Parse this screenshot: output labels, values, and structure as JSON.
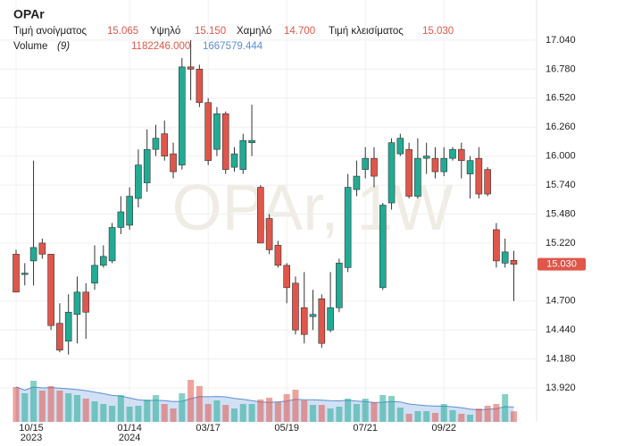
{
  "chart_data": {
    "type": "candlestick",
    "title": "OPAr",
    "watermark": "OPAr, 1W",
    "categories": [
      "10/15",
      null,
      null,
      null,
      null,
      null,
      null,
      null,
      null,
      null,
      null,
      null,
      null,
      "01/14",
      null,
      null,
      null,
      null,
      null,
      null,
      null,
      null,
      "03/17",
      null,
      null,
      null,
      null,
      null,
      null,
      null,
      null,
      "05/19",
      null,
      null,
      null,
      null,
      null,
      null,
      null,
      null,
      "07/21",
      null,
      null,
      null,
      null,
      null,
      null,
      null,
      null,
      "09/22",
      null,
      null,
      null,
      null,
      null,
      null,
      null,
      null
    ],
    "year_labels": [
      {
        "index": 0,
        "label": "2023"
      },
      {
        "index": 13,
        "label": "2024"
      }
    ],
    "open": [
      15.12,
      14.94,
      15.06,
      15.22,
      15.12,
      14.5,
      14.34,
      14.58,
      14.78,
      14.86,
      15.02,
      15.06,
      15.36,
      15.38,
      15.62,
      15.76,
      16.06,
      16.2,
      16.02,
      15.92,
      16.8,
      16.78,
      16.48,
      16.06,
      16.38,
      15.9,
      15.88,
      16.12,
      15.72,
      15.44,
      15.2,
      15.02,
      14.86,
      14.64,
      14.56,
      14.72,
      14.44,
      14.64,
      15.0,
      15.7,
      15.88,
      15.98,
      14.82,
      15.58,
      16.02,
      16.06,
      15.64,
      15.98,
      15.98,
      15.86,
      15.98,
      16.06,
      15.84,
      15.98,
      15.88,
      15.34,
      15.04,
      15.065
    ],
    "high": [
      15.16,
      15.04,
      15.96,
      15.26,
      15.12,
      14.68,
      14.76,
      14.92,
      14.86,
      15.2,
      15.2,
      15.4,
      15.64,
      15.72,
      16.06,
      16.24,
      16.28,
      16.32,
      16.12,
      16.88,
      17.04,
      16.82,
      16.52,
      16.44,
      16.4,
      16.08,
      16.2,
      16.46,
      15.74,
      15.48,
      15.24,
      15.04,
      14.92,
      14.96,
      14.8,
      14.76,
      14.96,
      15.08,
      15.84,
      15.96,
      16.08,
      16.08,
      15.58,
      16.16,
      16.2,
      16.12,
      16.16,
      16.12,
      16.08,
      16.08,
      16.08,
      16.12,
      16.0,
      16.08,
      15.9,
      15.4,
      15.26,
      15.15
    ],
    "low": [
      14.78,
      14.84,
      14.84,
      15.08,
      14.44,
      14.24,
      14.22,
      14.32,
      14.36,
      14.8,
      15.0,
      15.04,
      15.3,
      15.34,
      15.54,
      15.68,
      16.0,
      15.96,
      15.8,
      15.88,
      16.5,
      16.44,
      15.92,
      16.0,
      15.84,
      15.86,
      15.84,
      16.0,
      15.22,
      15.12,
      15.0,
      14.68,
      14.4,
      14.32,
      14.44,
      14.28,
      14.42,
      14.6,
      14.96,
      15.64,
      15.8,
      15.72,
      14.8,
      15.52,
      16.0,
      15.62,
      15.62,
      15.84,
      15.8,
      15.82,
      15.96,
      15.8,
      15.62,
      15.62,
      15.64,
      15.0,
      15.0,
      14.7
    ],
    "close": [
      14.78,
      14.95,
      15.18,
      15.12,
      14.48,
      14.26,
      14.6,
      14.78,
      14.6,
      15.02,
      15.1,
      15.36,
      15.5,
      15.64,
      15.92,
      16.06,
      16.16,
      16.0,
      15.86,
      16.8,
      16.78,
      16.48,
      15.96,
      16.38,
      15.88,
      16.02,
      16.14,
      16.14,
      15.22,
      15.16,
      15.02,
      14.82,
      14.44,
      14.4,
      14.58,
      14.32,
      14.64,
      15.04,
      15.72,
      15.82,
      15.98,
      15.82,
      15.56,
      16.12,
      16.16,
      15.64,
      15.98,
      16.0,
      15.86,
      15.98,
      16.06,
      15.96,
      15.96,
      15.66,
      15.66,
      15.06,
      15.14,
      15.03
    ],
    "ohlc_names": [
      "Τιμή ανοίγματος",
      "Υψηλό",
      "Χαμηλό",
      "Τιμή κλεισίματος"
    ],
    "last_labels": [
      "15.065",
      "15.150",
      "14.700",
      "15.030"
    ],
    "volume": {
      "name": "Volume",
      "period": "(9)",
      "values": [
        3900000,
        3200000,
        4600000,
        3500000,
        4000000,
        3500000,
        3200000,
        3000000,
        2600000,
        2300000,
        2000000,
        1800000,
        3000000,
        1700000,
        1800000,
        2500000,
        3000000,
        2000000,
        1500000,
        3200000,
        4700000,
        4000000,
        2000000,
        2400000,
        1900000,
        1500000,
        2000000,
        2000000,
        2500000,
        2700000,
        2200000,
        3100000,
        3600000,
        2400000,
        1900000,
        1900000,
        1500000,
        1700000,
        2600000,
        2000000,
        2600000,
        2200000,
        3000000,
        2900000,
        1600000,
        900000,
        1200000,
        1200000,
        1000000,
        2000000,
        1300000,
        900000,
        800000,
        1500000,
        1800000,
        2000000,
        3100000,
        1182246
      ],
      "ma_values": [
        3900000,
        3550000,
        3900000,
        3800000,
        3840000,
        3780000,
        3700000,
        3610000,
        3500000,
        3320000,
        3160000,
        2960000,
        2870000,
        2670000,
        2470000,
        2380000,
        2420000,
        2370000,
        2270000,
        2300000,
        2600000,
        2820000,
        2810000,
        2840000,
        2800000,
        2630000,
        2520000,
        2380000,
        2220000,
        2190000,
        2240000,
        2330000,
        2530000,
        2480000,
        2470000,
        2420000,
        2370000,
        2350000,
        2410000,
        2330000,
        2270000,
        2160000,
        2190000,
        2270000,
        2230000,
        2000000,
        1900000,
        1810000,
        1760000,
        1760000,
        1690000,
        1590000,
        1430000,
        1340000,
        1400000,
        1480000,
        1700000,
        1667579.444
      ],
      "value_label": "1182246.000",
      "ma_label": "1667579.444",
      "ma_color": "#5b8fd6",
      "ylim": [
        0,
        4800000
      ]
    },
    "ylim": [
      13.632,
      17.32
    ],
    "yticks": [
      {
        "value": 13.92,
        "label": "13.920"
      },
      {
        "value": 14.18,
        "label": "14.180"
      },
      {
        "value": 14.44,
        "label": "14.440"
      },
      {
        "value": 14.7,
        "label": "14.700"
      },
      {
        "value": 15.22,
        "label": "15.220"
      },
      {
        "value": 15.48,
        "label": "15.480"
      },
      {
        "value": 15.74,
        "label": "15.740"
      },
      {
        "value": 16.0,
        "label": "16.000"
      },
      {
        "value": 16.26,
        "label": "16.260"
      },
      {
        "value": 16.52,
        "label": "16.520"
      },
      {
        "value": 16.78,
        "label": "16.780"
      },
      {
        "value": 17.04,
        "label": "17.040"
      }
    ],
    "up_color": "#22ab94",
    "down_color": "#e0564a",
    "grid": true
  }
}
